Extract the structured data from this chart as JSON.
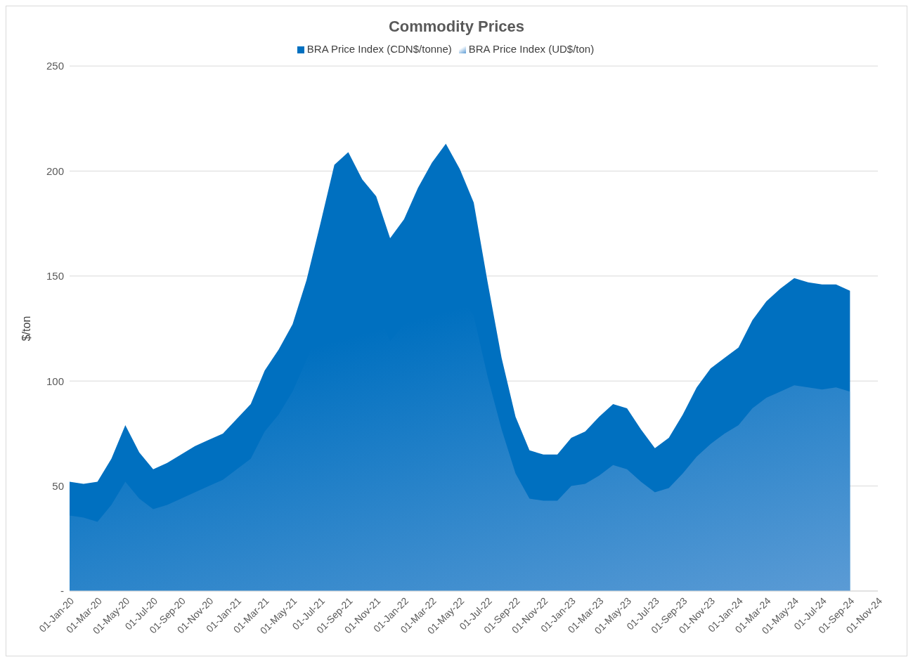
{
  "chart_data": {
    "type": "area",
    "title": "Commodity Prices",
    "ylabel": "$/ton",
    "x": [
      "2020-01",
      "2020-02",
      "2020-03",
      "2020-04",
      "2020-05",
      "2020-06",
      "2020-07",
      "2020-08",
      "2020-09",
      "2020-10",
      "2020-11",
      "2020-12",
      "2021-01",
      "2021-02",
      "2021-03",
      "2021-04",
      "2021-05",
      "2021-06",
      "2021-07",
      "2021-08",
      "2021-09",
      "2021-10",
      "2021-11",
      "2021-12",
      "2022-01",
      "2022-02",
      "2022-03",
      "2022-04",
      "2022-05",
      "2022-06",
      "2022-07",
      "2022-08",
      "2022-09",
      "2022-10",
      "2022-11",
      "2022-12",
      "2023-01",
      "2023-02",
      "2023-03",
      "2023-04",
      "2023-05",
      "2023-06",
      "2023-07",
      "2023-08",
      "2023-09",
      "2023-10",
      "2023-11",
      "2023-12",
      "2024-01",
      "2024-02",
      "2024-03",
      "2024-04",
      "2024-05",
      "2024-06",
      "2024-07",
      "2024-08",
      "2024-09"
    ],
    "series": [
      {
        "name": "BRA Price Index (CDN$/tonne)",
        "color": "#0070c0",
        "values": [
          52,
          51,
          52,
          63,
          79,
          66,
          58,
          61,
          65,
          69,
          72,
          75,
          82,
          89,
          105,
          115,
          127,
          148,
          175,
          203,
          209,
          196,
          188,
          168,
          177,
          192,
          204,
          213,
          201,
          185,
          147,
          111,
          83,
          67,
          65,
          65,
          73,
          76,
          83,
          89,
          87,
          77,
          68,
          73,
          84,
          97,
          106,
          111,
          116,
          129,
          138,
          144,
          149,
          147,
          146,
          146,
          143
        ]
      },
      {
        "name": "BRA Price Index (UD$/ton)",
        "color": "#5b9bd5",
        "values": [
          36,
          35,
          33,
          41,
          52,
          44,
          39,
          41,
          44,
          47,
          50,
          53,
          58,
          63,
          76,
          84,
          95,
          110,
          126,
          146,
          150,
          142,
          135,
          119,
          127,
          137,
          146,
          153,
          141,
          131,
          102,
          77,
          56,
          44,
          43,
          43,
          50,
          51,
          55,
          60,
          58,
          52,
          47,
          49,
          56,
          64,
          70,
          75,
          79,
          87,
          92,
          95,
          98,
          97,
          96,
          97,
          95
        ]
      }
    ],
    "xlim": [
      "2020-01",
      "2024-11"
    ],
    "xticks": [
      {
        "value": "2020-01",
        "label": "01-Jan-20"
      },
      {
        "value": "2020-03",
        "label": "01-Mar-20"
      },
      {
        "value": "2020-05",
        "label": "01-May-20"
      },
      {
        "value": "2020-07",
        "label": "01-Jul-20"
      },
      {
        "value": "2020-09",
        "label": "01-Sep-20"
      },
      {
        "value": "2020-11",
        "label": "01-Nov-20"
      },
      {
        "value": "2021-01",
        "label": "01-Jan-21"
      },
      {
        "value": "2021-03",
        "label": "01-Mar-21"
      },
      {
        "value": "2021-05",
        "label": "01-May-21"
      },
      {
        "value": "2021-07",
        "label": "01-Jul-21"
      },
      {
        "value": "2021-09",
        "label": "01-Sep-21"
      },
      {
        "value": "2021-11",
        "label": "01-Nov-21"
      },
      {
        "value": "2022-01",
        "label": "01-Jan-22"
      },
      {
        "value": "2022-03",
        "label": "01-Mar-22"
      },
      {
        "value": "2022-05",
        "label": "01-May-22"
      },
      {
        "value": "2022-07",
        "label": "01-Jul-22"
      },
      {
        "value": "2022-09",
        "label": "01-Sep-22"
      },
      {
        "value": "2022-11",
        "label": "01-Nov-22"
      },
      {
        "value": "2023-01",
        "label": "01-Jan-23"
      },
      {
        "value": "2023-03",
        "label": "01-Mar-23"
      },
      {
        "value": "2023-05",
        "label": "01-May-23"
      },
      {
        "value": "2023-07",
        "label": "01-Jul-23"
      },
      {
        "value": "2023-09",
        "label": "01-Sep-23"
      },
      {
        "value": "2023-11",
        "label": "01-Nov-23"
      },
      {
        "value": "2024-01",
        "label": "01-Jan-24"
      },
      {
        "value": "2024-03",
        "label": "01-Mar-24"
      },
      {
        "value": "2024-05",
        "label": "01-May-24"
      },
      {
        "value": "2024-07",
        "label": "01-Jul-24"
      },
      {
        "value": "2024-09",
        "label": "01-Sep-24"
      },
      {
        "value": "2024-11",
        "label": "01-Nov-24"
      }
    ],
    "ylim": [
      0,
      250
    ],
    "yticks": [
      {
        "value": 0,
        "label": "-"
      },
      50,
      100,
      150,
      200,
      250
    ],
    "grid": "y",
    "legend": "top"
  }
}
